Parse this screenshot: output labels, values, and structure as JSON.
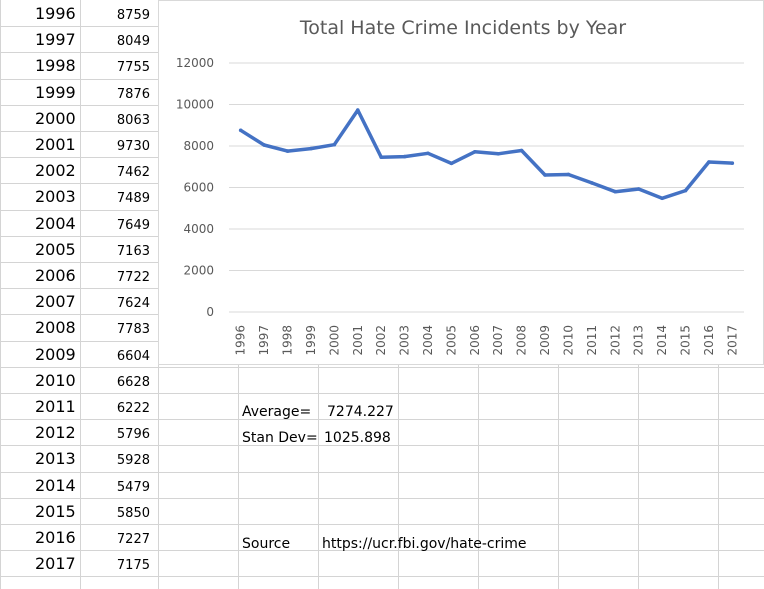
{
  "sheet": {
    "rows": [
      {
        "year": "1996",
        "value": "8759"
      },
      {
        "year": "1997",
        "value": "8049"
      },
      {
        "year": "1998",
        "value": "7755"
      },
      {
        "year": "1999",
        "value": "7876"
      },
      {
        "year": "2000",
        "value": "8063"
      },
      {
        "year": "2001",
        "value": "9730"
      },
      {
        "year": "2002",
        "value": "7462"
      },
      {
        "year": "2003",
        "value": "7489"
      },
      {
        "year": "2004",
        "value": "7649"
      },
      {
        "year": "2005",
        "value": "7163"
      },
      {
        "year": "2006",
        "value": "7722"
      },
      {
        "year": "2007",
        "value": "7624"
      },
      {
        "year": "2008",
        "value": "7783"
      },
      {
        "year": "2009",
        "value": "6604"
      },
      {
        "year": "2010",
        "value": "6628"
      },
      {
        "year": "2011",
        "value": "6222"
      },
      {
        "year": "2012",
        "value": "5796"
      },
      {
        "year": "2013",
        "value": "5928"
      },
      {
        "year": "2014",
        "value": "5479"
      },
      {
        "year": "2015",
        "value": "5850"
      },
      {
        "year": "2016",
        "value": "7227"
      },
      {
        "year": "2017",
        "value": "7175"
      }
    ],
    "stats": {
      "average_label": "Average=",
      "average_value": "7274.227",
      "stdev_label": "Stan Dev=",
      "stdev_value": "1025.898",
      "source_label": "Source",
      "source_value": "https://ucr.fbi.gov/hate-crime"
    }
  },
  "colors": {
    "line": "#4472c4",
    "grid": "#d9d9d9",
    "text": "#595959"
  },
  "chart_data": {
    "type": "line",
    "title": "Total Hate Crime Incidents by Year",
    "x": [
      "1996",
      "1997",
      "1998",
      "1999",
      "2000",
      "2001",
      "2002",
      "2003",
      "2004",
      "2005",
      "2006",
      "2007",
      "2008",
      "2009",
      "2010",
      "2011",
      "2012",
      "2013",
      "2014",
      "2015",
      "2016",
      "2017"
    ],
    "series": [
      {
        "values": [
          8759,
          8049,
          7755,
          7876,
          8063,
          9730,
          7462,
          7489,
          7649,
          7163,
          7722,
          7624,
          7783,
          6604,
          6628,
          6222,
          5796,
          5928,
          5479,
          5850,
          7227,
          7175
        ]
      }
    ],
    "ylim": [
      0,
      12000
    ],
    "yticks": [
      0,
      2000,
      4000,
      6000,
      8000,
      10000,
      12000
    ],
    "grid": true,
    "legend": "none"
  }
}
